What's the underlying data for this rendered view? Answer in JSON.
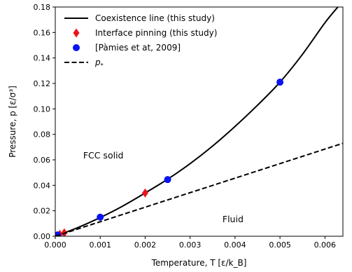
{
  "chart_data": {
    "type": "line",
    "xlabel": "Temperature, T [ε/k_B]",
    "ylabel": "Pressure, p [ε/σ³]",
    "xlim": [
      0.0,
      0.0064
    ],
    "ylim": [
      0.0,
      0.18
    ],
    "x_ticks": [
      "0.000",
      "0.001",
      "0.002",
      "0.003",
      "0.004",
      "0.005",
      "0.006"
    ],
    "y_ticks": [
      "0.00",
      "0.02",
      "0.04",
      "0.06",
      "0.08",
      "0.10",
      "0.12",
      "0.14",
      "0.16",
      "0.18"
    ],
    "legend_position": "top-left",
    "grid": false,
    "series": [
      {
        "name": "Coexistence line (this study)",
        "style": "solid-line",
        "color": "#000000",
        "x": [
          0.0,
          0.0005,
          0.001,
          0.0015,
          0.002,
          0.0025,
          0.003,
          0.0035,
          0.004,
          0.0045,
          0.005,
          0.0055,
          0.006,
          0.0063
        ],
        "y": [
          0.0,
          0.0068,
          0.0147,
          0.0237,
          0.034,
          0.0448,
          0.057,
          0.0708,
          0.0862,
          0.1029,
          0.121,
          0.1428,
          0.1676,
          0.1805
        ]
      },
      {
        "name": "Interface pinning (this study)",
        "style": "diamond-marker",
        "color": "#e8161b",
        "x": [
          0.0001,
          0.0002,
          0.002
        ],
        "y": [
          0.0015,
          0.0027,
          0.034
        ]
      },
      {
        "name": "[Pàmies et at, 2009]",
        "style": "circle-marker",
        "color": "#0a14f2",
        "x": [
          5e-05,
          0.001,
          0.0025,
          0.005
        ],
        "y": [
          0.001,
          0.015,
          0.0445,
          0.121
        ]
      },
      {
        "name_main": "p",
        "name_sub": "*",
        "style": "dashed-line",
        "color": "#000000",
        "x": [
          0.0,
          0.0064
        ],
        "y": [
          0.0,
          0.073
        ]
      }
    ],
    "annotations": [
      {
        "text": "FCC solid",
        "x": 0.00062,
        "y": 0.061
      },
      {
        "text": "Fluid",
        "x": 0.00372,
        "y": 0.011
      }
    ]
  }
}
